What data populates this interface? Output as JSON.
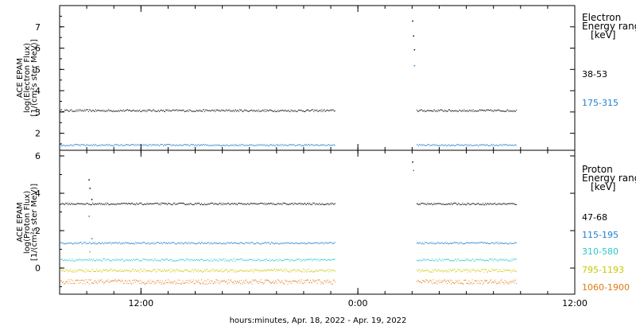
{
  "chart_data": [
    {
      "type": "scatter",
      "panel": "electron",
      "ylabel": [
        "ACE EPAM",
        "log(Electron Flux)",
        "[1/(cm²s ster MeV)]"
      ],
      "ylim": [
        1.2,
        8.0
      ],
      "yticks": [
        2,
        3,
        4,
        5,
        6,
        7
      ],
      "legend_title": [
        "Electron",
        "Energy range",
        "[keV]"
      ],
      "series": [
        {
          "name": "38-53",
          "color": "#000000",
          "level": 3.08,
          "noise": 0.05,
          "segments": [
            [
              0.0,
              30.5
            ],
            [
              39.5,
              50.5
            ]
          ],
          "spike": [
            {
              "x": 39.0,
              "y": 7.3
            },
            {
              "x": 39.1,
              "y": 6.6
            },
            {
              "x": 39.2,
              "y": 5.95
            }
          ]
        },
        {
          "name": "175-315",
          "color": "#1f7fd0",
          "level": 1.46,
          "noise": 0.04,
          "segments": [
            [
              0.0,
              30.5
            ],
            [
              39.5,
              50.5
            ]
          ],
          "spike": [
            {
              "x": 39.2,
              "y": 5.2
            }
          ]
        }
      ]
    },
    {
      "type": "scatter",
      "panel": "proton",
      "ylabel": [
        "ACE EPAM",
        "log(Proton Flux)",
        "[1/(cm²s ster MeV)]"
      ],
      "ylim": [
        -1.4,
        6.3
      ],
      "yticks": [
        0,
        2,
        4,
        6
      ],
      "legend_title": [
        "Proton",
        "Energy range",
        "[keV]"
      ],
      "series": [
        {
          "name": "47-68",
          "color": "#000000",
          "level": 3.45,
          "noise": 0.05,
          "segments": [
            [
              0.0,
              30.5
            ],
            [
              39.5,
              50.5
            ]
          ],
          "spike": [
            {
              "x": 3.2,
              "y": 4.75
            },
            {
              "x": 3.3,
              "y": 4.3
            },
            {
              "x": 3.5,
              "y": 3.7
            },
            {
              "x": 39.0,
              "y": 5.7
            }
          ]
        },
        {
          "name": "115-195",
          "color": "#1f7fd0",
          "level": 1.35,
          "noise": 0.05,
          "segments": [
            [
              0.0,
              30.5
            ],
            [
              39.5,
              50.5
            ]
          ],
          "spike": [
            {
              "x": 3.2,
              "y": 2.8
            },
            {
              "x": 3.5,
              "y": 1.6
            },
            {
              "x": 39.1,
              "y": 5.25
            }
          ]
        },
        {
          "name": "310-580",
          "color": "#2ec7c7",
          "level": 0.45,
          "noise": 0.06,
          "segments": [
            [
              0.0,
              30.5
            ],
            [
              39.5,
              50.5
            ]
          ],
          "spike": [
            {
              "x": 3.3,
              "y": 0.9
            }
          ]
        },
        {
          "name": "795-1193",
          "color": "#c8c800",
          "level": -0.12,
          "noise": 0.08,
          "segments": [
            [
              0.0,
              30.5
            ],
            [
              39.5,
              50.5
            ]
          ],
          "spike": []
        },
        {
          "name": "1060-1900",
          "color": "#e07810",
          "level": -0.72,
          "noise": 0.12,
          "segments": [
            [
              0.0,
              30.5
            ],
            [
              39.5,
              50.5
            ]
          ],
          "spike": []
        }
      ]
    }
  ],
  "x_axis": {
    "xlim": [
      0,
      57
    ],
    "ticks": [
      {
        "x": 9,
        "label": "12:00"
      },
      {
        "x": 33,
        "label": "0:00"
      },
      {
        "x": 57,
        "label": "12:00"
      }
    ],
    "minor_ticks": [
      3,
      6,
      9,
      12,
      15,
      18,
      21,
      24,
      27,
      30,
      33,
      36,
      39,
      42,
      45,
      48,
      51,
      54
    ],
    "xlabel": "hours:minutes, Apr. 18, 2022 - Apr. 19, 2022"
  }
}
